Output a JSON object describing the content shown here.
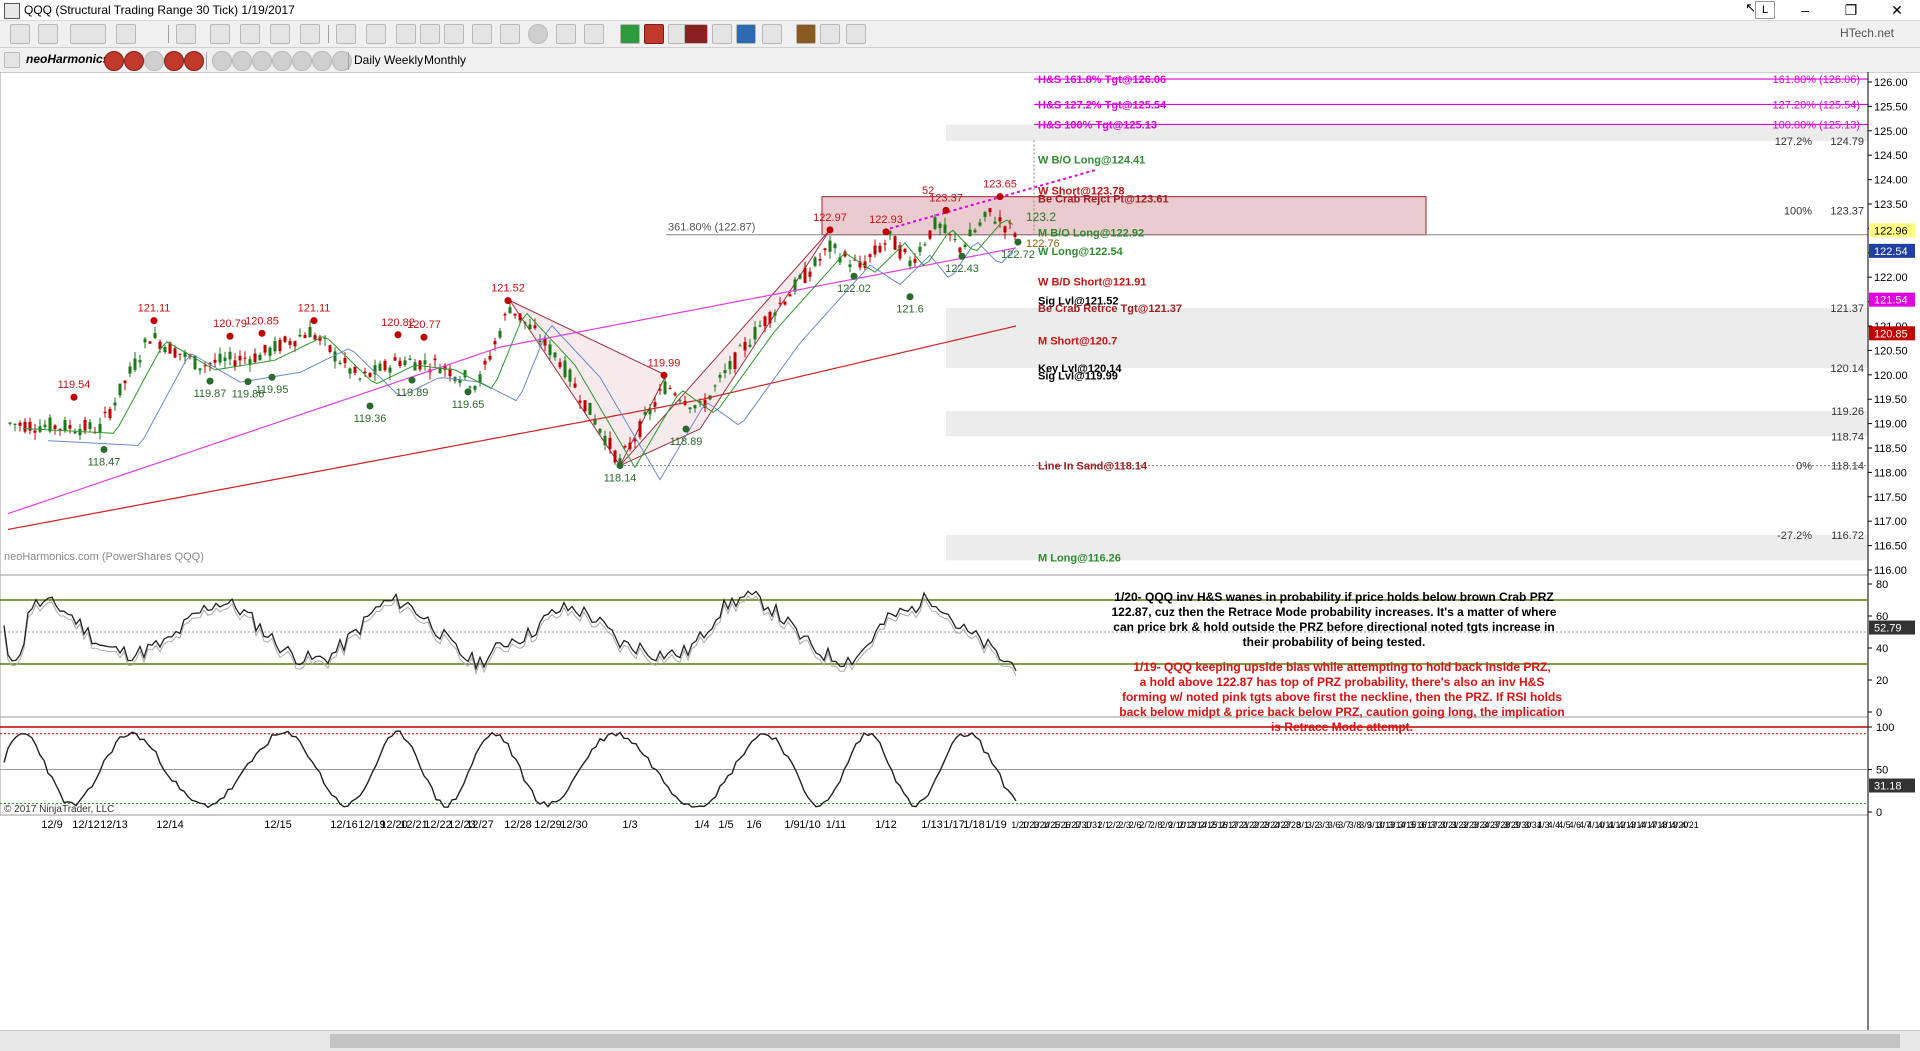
{
  "window": {
    "title": "QQQ (Structural Trading Range 30 Tick)  1/19/2017",
    "right_label": "L",
    "brand_tag": "HTech.net"
  },
  "toolbar2": {
    "brand": "neoHarmonics",
    "periods": [
      "Daily",
      "Weekly",
      "Monthly"
    ]
  },
  "colors": {
    "bull": "#1a7a1a",
    "bear": "#c00000",
    "magenta": "#e000e0",
    "green": "#2a9a2a",
    "red_label": "#c81010",
    "green_label": "#2e8b2e",
    "prz_fill": "#d9a0a8",
    "sma_red": "#d02020",
    "sma_magenta": "#e040e0",
    "sma_blue": "#6a8ad0",
    "brown": "#8b5a00"
  },
  "chart_data": {
    "type": "candlestick",
    "source_label": "neoHarmonics.com (PowerShares QQQ)",
    "copyright": "© 2017 NinjaTrader, LLC",
    "price_axis": {
      "min": 116.0,
      "max": 126.0,
      "ticks": [
        "126.00",
        "125.50",
        "125.00",
        "124.50",
        "124.00",
        "123.50",
        "123.00",
        "122.50",
        "122.00",
        "121.50",
        "121.00",
        "120.50",
        "120.00",
        "119.50",
        "119.00",
        "118.50",
        "118.00",
        "117.50",
        "117.00",
        "116.50",
        "116.00"
      ]
    },
    "date_labels": [
      "12/9",
      "12/12",
      "12/13",
      "12/14",
      "12/15",
      "12/16",
      "12/19",
      "12/20",
      "12/21",
      "12/22",
      "12/23",
      "12/27",
      "12/28",
      "12/29",
      "12/30",
      "1/3",
      "1/4",
      "1/5",
      "1/6",
      "1/9",
      "1/10",
      "1/11",
      "1/12",
      "1/13",
      "1/17",
      "1/18",
      "1/19"
    ],
    "future_dates": [
      "1/20",
      "1/23",
      "1/24",
      "1/25",
      "1/26",
      "1/27",
      "1/30",
      "1/31",
      "2/1",
      "2/2",
      "2/3",
      "2/6",
      "2/7",
      "2/8",
      "2/9",
      "2/10",
      "2/13",
      "2/14",
      "2/15",
      "2/16",
      "2/17",
      "2/21",
      "2/22",
      "2/23",
      "2/24",
      "2/27",
      "2/28",
      "3/1",
      "3/2",
      "3/3",
      "3/6",
      "3/7",
      "3/8",
      "3/9",
      "3/10",
      "3/13",
      "3/14",
      "3/15",
      "3/16",
      "3/17",
      "3/20",
      "3/21",
      "3/22",
      "3/23",
      "3/24",
      "3/27",
      "3/28",
      "3/29",
      "3/30",
      "3/31",
      "4/3",
      "4/4",
      "4/5",
      "4/6",
      "4/7",
      "4/10",
      "4/11",
      "4/12",
      "4/13",
      "4/14",
      "4/17",
      "4/18",
      "4/19",
      "4/20",
      "4/21"
    ],
    "pivot_highs": [
      {
        "label": "119.54",
        "price": 119.54
      },
      {
        "label": "121.11",
        "price": 121.11
      },
      {
        "label": "120.79",
        "price": 120.79
      },
      {
        "label": "120.85",
        "price": 120.85
      },
      {
        "label": "121.11",
        "price": 121.11
      },
      {
        "label": "120.82",
        "price": 120.82
      },
      {
        "label": "120.77",
        "price": 120.77
      },
      {
        "label": "121.52",
        "price": 121.52
      },
      {
        "label": "119.99",
        "price": 119.99
      },
      {
        "label": "122.97",
        "price": 122.97
      },
      {
        "label": "122.93",
        "price": 122.93
      },
      {
        "label": "123.37",
        "price": 123.37
      },
      {
        "label": "123.65",
        "price": 123.65
      }
    ],
    "pivot_lows": [
      {
        "label": "118.47",
        "price": 118.47
      },
      {
        "label": "119.87",
        "price": 119.87
      },
      {
        "label": "119.86",
        "price": 119.86
      },
      {
        "label": "119.95",
        "price": 119.95
      },
      {
        "label": "119.36",
        "price": 119.36
      },
      {
        "label": "119.89",
        "price": 119.89
      },
      {
        "label": "119.65",
        "price": 119.65
      },
      {
        "label": "118.14",
        "price": 118.14
      },
      {
        "label": "118.89",
        "price": 118.89
      },
      {
        "label": "122.02",
        "price": 122.02
      },
      {
        "label": "121.6",
        "price": 121.6
      },
      {
        "label": "122.43",
        "price": 122.43
      },
      {
        "label": "122.72",
        "price": 122.72
      }
    ],
    "levels": [
      {
        "label": "H&S 161.8% Tgt@126.06",
        "price": 126.06,
        "color": "magenta"
      },
      {
        "label": "H&S 127.2% Tgt@125.54",
        "price": 125.54,
        "color": "magenta"
      },
      {
        "label": "H&S 100% Tgt@125.13",
        "price": 125.13,
        "color": "magenta"
      },
      {
        "label": "W B/O Long@124.41",
        "price": 124.41,
        "color": "green"
      },
      {
        "label": "W Short@123.78",
        "price": 123.78,
        "color": "red"
      },
      {
        "label": "Be Crab Rejct Pt@123.61",
        "price": 123.61,
        "color": "brown"
      },
      {
        "label": "M B/O Long@122.92",
        "price": 122.92,
        "color": "green"
      },
      {
        "label": "W Long@122.54",
        "price": 122.54,
        "color": "green"
      },
      {
        "label": "W B/D Short@121.91",
        "price": 121.91,
        "color": "red"
      },
      {
        "label": "Sig Lvl@121.52",
        "price": 121.52,
        "color": "black"
      },
      {
        "label": "Be Crab Retrce Tgt@121.37",
        "price": 121.37,
        "color": "brown"
      },
      {
        "label": "M Short@120.7",
        "price": 120.7,
        "color": "red"
      },
      {
        "label": "Key Lvl@120.14",
        "price": 120.14,
        "color": "black"
      },
      {
        "label": "Sig Lvl@119.99",
        "price": 119.99,
        "color": "black"
      },
      {
        "label": "Line In Sand@118.14",
        "price": 118.14,
        "color": "brown"
      },
      {
        "label": "M Long@116.26",
        "price": 116.26,
        "color": "green"
      }
    ],
    "fib_labels": [
      {
        "pct": "161.80% (126.06)",
        "price": 126.06,
        "color": "magenta"
      },
      {
        "pct": "127.20% (125.54)",
        "price": 125.54,
        "color": "magenta"
      },
      {
        "pct": "100.00% (125.13)",
        "price": 125.13,
        "color": "magenta"
      },
      {
        "pct": "127.2%",
        "value": "124.79",
        "price": 124.79
      },
      {
        "pct": "100%",
        "value": "123.37",
        "price": 123.37
      },
      {
        "pct": "",
        "value": "121.37",
        "price": 121.37
      },
      {
        "pct": "",
        "value": "120.14",
        "price": 120.14
      },
      {
        "pct": "",
        "value": "119.26",
        "price": 119.26
      },
      {
        "pct": "",
        "value": "118.74",
        "price": 118.74
      },
      {
        "pct": "0%",
        "value": "118.14",
        "price": 118.14
      },
      {
        "pct": "-27.2%",
        "value": "116.72",
        "price": 116.72
      }
    ],
    "prz_label": "361.80% (122.87)",
    "prz_range": [
      122.87,
      123.65
    ],
    "small_labels": {
      "tgt_123_2": "123.2",
      "tgt_122_76": "122.76",
      "label_52": "52"
    },
    "axis_badges": [
      {
        "value": "122.96",
        "price": 122.96,
        "bg": "#ffff80",
        "fg": "#000"
      },
      {
        "value": "122.54",
        "price": 122.54,
        "bg": "#2040a0",
        "fg": "#fff"
      },
      {
        "value": "121.54",
        "price": 121.54,
        "bg": "#e000e0",
        "fg": "#fff"
      },
      {
        "value": "120.85",
        "price": 120.85,
        "bg": "#c00000",
        "fg": "#fff"
      }
    ],
    "rsi_panel": {
      "ticks": [
        "80",
        "60",
        "40",
        "20",
        "0"
      ],
      "badge": "52.79",
      "min": 0,
      "max": 80
    },
    "stoch_panel": {
      "ticks": [
        "100",
        "50",
        "0"
      ],
      "badge": "31.18",
      "min": 0,
      "max": 100
    }
  },
  "annotations": {
    "note_1_20": "1/20- QQQ inv H&S wanes in probability if price holds below brown Crab PRZ\n122.87, cuz then the Retrace Mode probability increases.  It's a matter of where\ncan price brk & hold outside the PRZ before directional noted tgts increase in\ntheir probability of being tested.",
    "note_1_19": "1/19- QQQ keeping upside bias while attempting to hold back inside PRZ,\na hold above 122.87 has top of PRZ probability, there's also an inv H&S\nforming w/ noted pink tgts above first the neckline, then the PRZ.  If RSI holds\nback below midpt & price back below PRZ, caution going long, the implication\nis Retrace Mode attempt."
  }
}
